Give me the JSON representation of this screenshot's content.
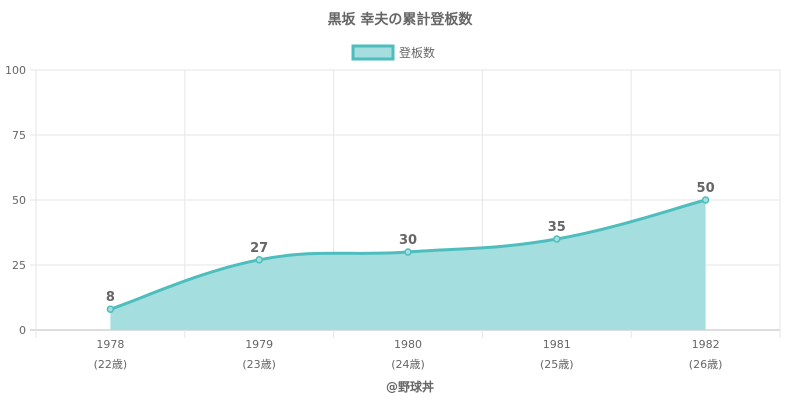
{
  "chart_data": {
    "type": "area",
    "title": "黒坂 幸夫の累計登板数",
    "legend": {
      "position": "top",
      "entries": [
        "登板数"
      ]
    },
    "categories": [
      "1978",
      "1979",
      "1980",
      "1981",
      "1982"
    ],
    "sublabels": [
      "(22歳)",
      "(23歳)",
      "(24歳)",
      "(25歳)",
      "(26歳)"
    ],
    "series": [
      {
        "name": "登板数",
        "values": [
          8,
          27,
          30,
          35,
          50
        ]
      }
    ],
    "data_labels": [
      "8",
      "27",
      "30",
      "35",
      "50"
    ],
    "ylim": [
      0,
      100
    ],
    "yticks": [
      "0",
      "25",
      "50",
      "75",
      "100"
    ],
    "grid": true,
    "colors": {
      "line": "#4dbdbd",
      "fill": "#a4dede",
      "grid": "#e6e6e6",
      "text": "#666666"
    }
  },
  "footer": {
    "credit": "@野球丼"
  }
}
